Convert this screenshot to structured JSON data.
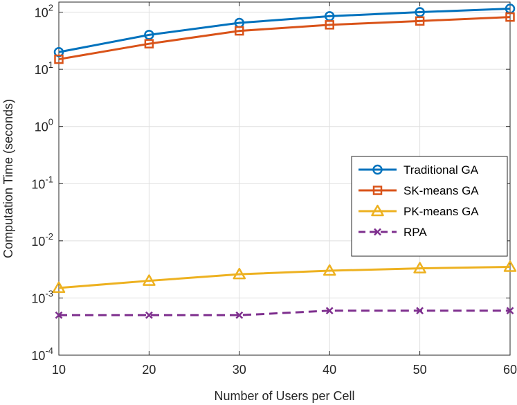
{
  "chart_data": {
    "type": "line",
    "title": "",
    "xlabel": "Number of Users per Cell",
    "ylabel": "Computation Time (seconds)",
    "yscale": "log",
    "x": [
      10,
      20,
      30,
      40,
      50,
      60
    ],
    "xlim": [
      10,
      60
    ],
    "ylim": [
      0.0001,
      150
    ],
    "grid": true,
    "legend_position": "right",
    "x_ticks": [
      10,
      20,
      30,
      40,
      50,
      60
    ],
    "x_tick_labels": [
      "10",
      "20",
      "30",
      "40",
      "50",
      "60"
    ],
    "y_ticks": [
      {
        "value": 0.0001,
        "base": "10",
        "exp": "-4"
      },
      {
        "value": 0.001,
        "base": "10",
        "exp": "-3"
      },
      {
        "value": 0.01,
        "base": "10",
        "exp": "-2"
      },
      {
        "value": 0.1,
        "base": "10",
        "exp": "-1"
      },
      {
        "value": 1,
        "base": "10",
        "exp": "0"
      },
      {
        "value": 10,
        "base": "10",
        "exp": "1"
      },
      {
        "value": 100,
        "base": "10",
        "exp": "2"
      }
    ],
    "series": [
      {
        "name": "Traditional GA",
        "color": "#0072BD",
        "marker": "circle",
        "dash": "solid",
        "values": [
          20,
          40,
          65,
          85,
          100,
          115
        ]
      },
      {
        "name": "SK-means GA",
        "color": "#D95319",
        "marker": "square",
        "dash": "solid",
        "values": [
          15,
          28,
          47,
          60,
          70,
          82
        ]
      },
      {
        "name": "PK-means GA",
        "color": "#EDB120",
        "marker": "triangle",
        "dash": "solid",
        "values": [
          0.0015,
          0.002,
          0.0026,
          0.003,
          0.0033,
          0.0035
        ]
      },
      {
        "name": "RPA",
        "color": "#7E2F8E",
        "marker": "x",
        "dash": "dashed",
        "values": [
          0.0005,
          0.0005,
          0.0005,
          0.0006,
          0.0006,
          0.0006
        ]
      }
    ]
  }
}
